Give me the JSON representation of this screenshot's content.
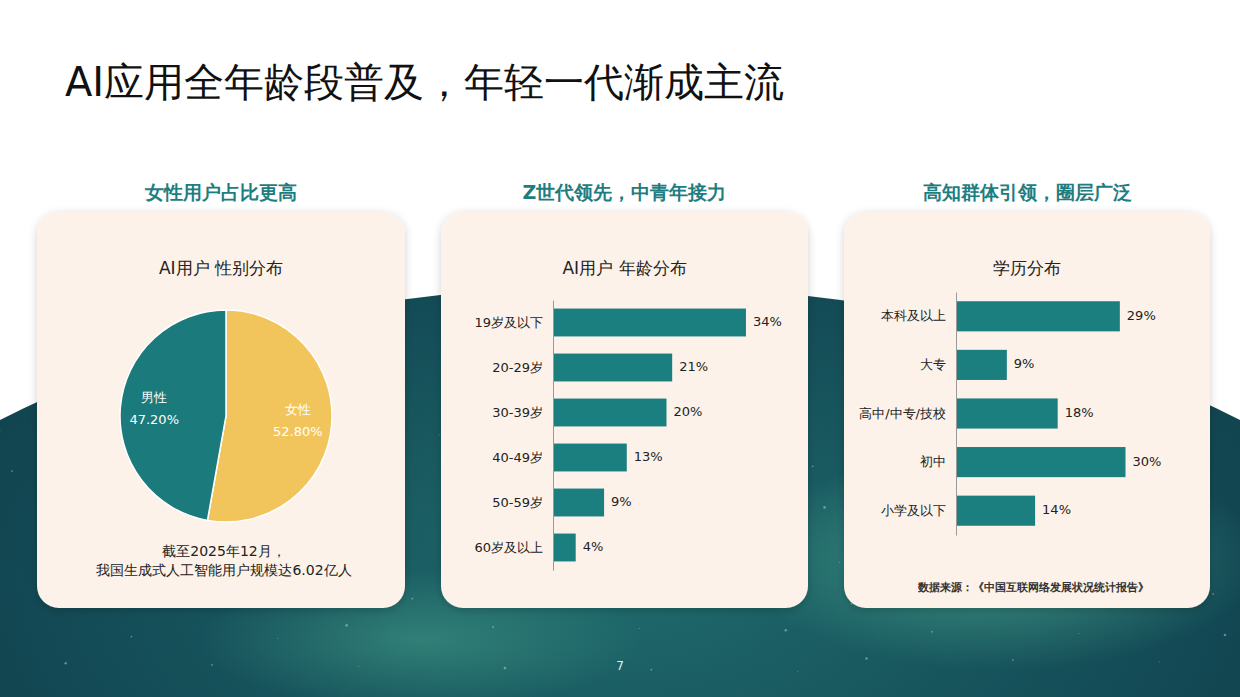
{
  "title": "AI应用全年龄段普及，年轻一代渐成主流",
  "page_number": "7",
  "chart_data": [
    {
      "type": "pie",
      "heading": "女性用户占比更高",
      "title": "AI用户 性别分布",
      "categories": [
        "女性",
        "男性"
      ],
      "values": [
        52.8,
        47.2
      ],
      "value_labels": [
        "52.80%",
        "47.20%"
      ],
      "colors": [
        "#f2c55c",
        "#1b7a7c"
      ],
      "data_labels": true,
      "annotations": [
        "截至2025年12月，",
        "我国生成式人工智能用户规模达6.02亿人"
      ]
    },
    {
      "type": "bar",
      "orientation": "horizontal",
      "heading": "Z世代领先，中青年接力",
      "title": "AI用户 年龄分布",
      "categories": [
        "19岁及以下",
        "20-29岁",
        "30-39岁",
        "40-49岁",
        "50-59岁",
        "60岁及以上"
      ],
      "values": [
        34,
        21,
        20,
        13,
        9,
        4
      ],
      "value_labels": [
        "34%",
        "21%",
        "20%",
        "13%",
        "9%",
        "4%"
      ],
      "color": "#1b7f80",
      "xlim": [
        0,
        40
      ],
      "data_labels": true,
      "tick_labels": "y"
    },
    {
      "type": "bar",
      "orientation": "horizontal",
      "heading": "高知群体引领，圈层广泛",
      "title": "学历分布",
      "categories": [
        "本科及以上",
        "大专",
        "高中/中专/技校",
        "初中",
        "小学及以下"
      ],
      "values": [
        29,
        9,
        18,
        30,
        14
      ],
      "value_labels": [
        "29%",
        "9%",
        "18%",
        "30%",
        "14%"
      ],
      "color": "#1b7f80",
      "xlim": [
        0,
        40
      ],
      "data_labels": true,
      "tick_labels": "y",
      "source": "数据来源：《中国互联网络发展状况统计报告》"
    }
  ]
}
